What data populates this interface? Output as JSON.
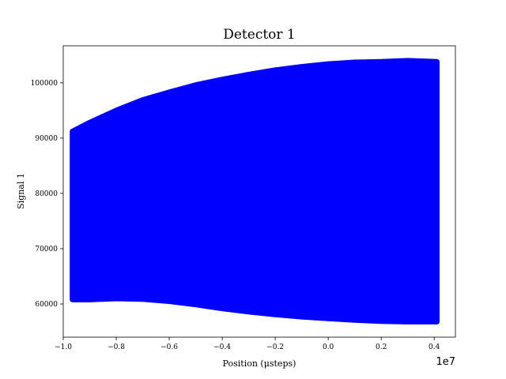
{
  "chart_data": {
    "type": "scatter",
    "title": "Detector 1",
    "xlabel": "Position (μsteps)",
    "ylabel": "Signal 1",
    "x_offset_label": "1e7",
    "xlim": [
      -1.0,
      0.48
    ],
    "ylim": [
      54000,
      106700
    ],
    "xticks": [
      {
        "value": -1.0,
        "label": "−1.0"
      },
      {
        "value": -0.8,
        "label": "−0.8"
      },
      {
        "value": -0.6,
        "label": "−0.6"
      },
      {
        "value": -0.4,
        "label": "−0.4"
      },
      {
        "value": -0.2,
        "label": "−0.2"
      },
      {
        "value": 0.0,
        "label": "0.0"
      },
      {
        "value": 0.2,
        "label": "0.2"
      },
      {
        "value": 0.4,
        "label": "0.4"
      }
    ],
    "yticks": [
      {
        "value": 60000,
        "label": "60000"
      },
      {
        "value": 70000,
        "label": "70000"
      },
      {
        "value": 80000,
        "label": "80000"
      },
      {
        "value": 90000,
        "label": "90000"
      },
      {
        "value": 100000,
        "label": "100000"
      }
    ],
    "marker_color": "#0000ff",
    "grid": false,
    "envelope": {
      "x": [
        -0.965,
        -0.9,
        -0.8,
        -0.7,
        -0.6,
        -0.5,
        -0.4,
        -0.3,
        -0.2,
        -0.1,
        0.0,
        0.1,
        0.2,
        0.3,
        0.41
      ],
      "upper": [
        91200,
        92800,
        95000,
        96900,
        98300,
        99600,
        100600,
        101500,
        102300,
        102900,
        103400,
        103700,
        103800,
        104000,
        103800
      ],
      "lower": [
        60800,
        60800,
        61000,
        60900,
        60500,
        59900,
        59200,
        58600,
        58100,
        57700,
        57400,
        57100,
        56900,
        56800,
        56800
      ]
    }
  }
}
